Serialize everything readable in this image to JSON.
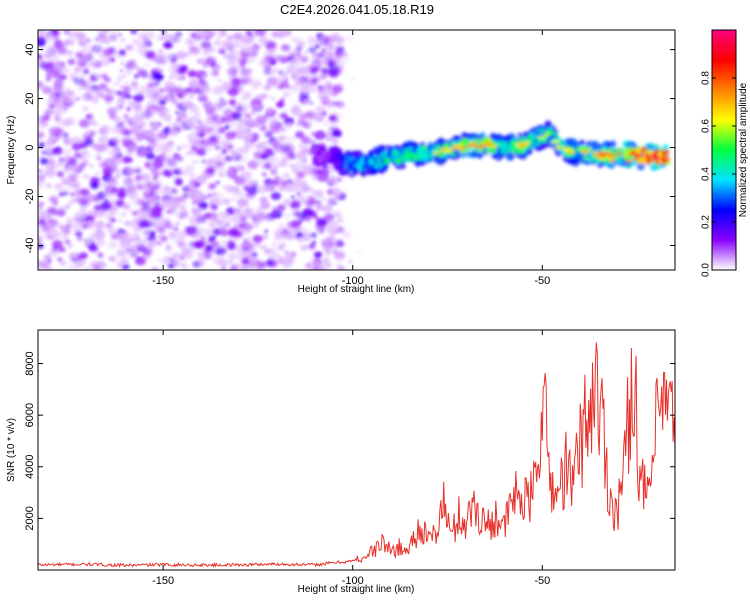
{
  "figure": {
    "title": "C2E4.2026.041.05.18.R19"
  },
  "chart_data": [
    {
      "type": "heatmap",
      "title": "C2E4.2026.041.05.18.R19",
      "xlabel": "Height of straight line (km)",
      "ylabel": "Frequency (Hz)",
      "xlim": [
        -183,
        -15
      ],
      "ylim": [
        -50,
        48
      ],
      "x_ticks": [
        -150,
        -100,
        -50
      ],
      "y_ticks": [
        -40,
        -20,
        0,
        20,
        40
      ],
      "grid": false,
      "colorbar": {
        "label": "Normalized spectral amplitude",
        "range": [
          0.0,
          1.0
        ],
        "ticks": [
          0.0,
          0.2,
          0.4,
          0.6,
          0.8
        ],
        "tick_labels": [
          "0.0",
          "0.2",
          "0.4",
          "0.6",
          "0.8"
        ],
        "colormap": [
          "#ffffff",
          "#8a00ff",
          "#0000ff",
          "#00e5ff",
          "#00ff40",
          "#ffff00",
          "#ff8000",
          "#ff0000",
          "#ff0080"
        ]
      },
      "noise_region": {
        "x_range": [
          -183,
          -103
        ],
        "y_range": [
          -50,
          48
        ],
        "mean_amplitude": 0.08
      },
      "signal_track": {
        "x": [
          -110,
          -105,
          -100,
          -95,
          -90,
          -85,
          -80,
          -75,
          -70,
          -65,
          -60,
          -55,
          -50,
          -48,
          -46,
          -44,
          -40,
          -35,
          -30,
          -25,
          -20,
          -17
        ],
        "frequency_hz": [
          -3,
          -4,
          -7,
          -6,
          -4,
          -3,
          -2,
          -1,
          1,
          1,
          0,
          1,
          5,
          6,
          1,
          -1,
          -2,
          -3,
          -3,
          -3,
          -4,
          -4
        ],
        "amplitude": [
          0.1,
          0.2,
          0.35,
          0.4,
          0.45,
          0.45,
          0.5,
          0.5,
          0.6,
          0.55,
          0.5,
          0.5,
          0.45,
          0.4,
          0.45,
          0.5,
          0.5,
          0.55,
          0.7,
          0.8,
          0.85,
          0.8
        ]
      }
    },
    {
      "type": "line",
      "xlabel": "Height of straight line (km)",
      "ylabel": "SNR (10 * v/v)",
      "xlim": [
        -183,
        -15
      ],
      "ylim": [
        0,
        9300
      ],
      "x_ticks": [
        -150,
        -100,
        -50
      ],
      "y_ticks": [
        2000,
        4000,
        6000,
        8000
      ],
      "grid": false,
      "series": [
        {
          "color": "#e8302a",
          "x": [
            -183,
            -170,
            -160,
            -150,
            -140,
            -130,
            -120,
            -110,
            -105,
            -100,
            -97,
            -94,
            -92,
            -90,
            -88,
            -86,
            -84,
            -82,
            -80,
            -78,
            -76,
            -74,
            -72,
            -70,
            -68,
            -66,
            -64,
            -62,
            -60,
            -58,
            -56,
            -54,
            -52,
            -50,
            -48,
            -46,
            -44,
            -42,
            -40,
            -38,
            -36,
            -34,
            -32,
            -30,
            -28,
            -26,
            -24,
            -22,
            -20,
            -18,
            -16,
            -15
          ],
          "y": [
            200,
            220,
            180,
            210,
            190,
            200,
            230,
            200,
            280,
            350,
            500,
            800,
            1100,
            700,
            900,
            700,
            1200,
            1700,
            1100,
            1500,
            2600,
            1300,
            2100,
            1800,
            2600,
            2000,
            1700,
            2200,
            1600,
            2700,
            3000,
            2500,
            3200,
            7000,
            3500,
            2800,
            4000,
            3200,
            5000,
            6000,
            7300,
            5500,
            2600,
            2400,
            4500,
            8100,
            3200,
            2800,
            5200,
            6500,
            5700,
            4700
          ]
        }
      ]
    }
  ]
}
